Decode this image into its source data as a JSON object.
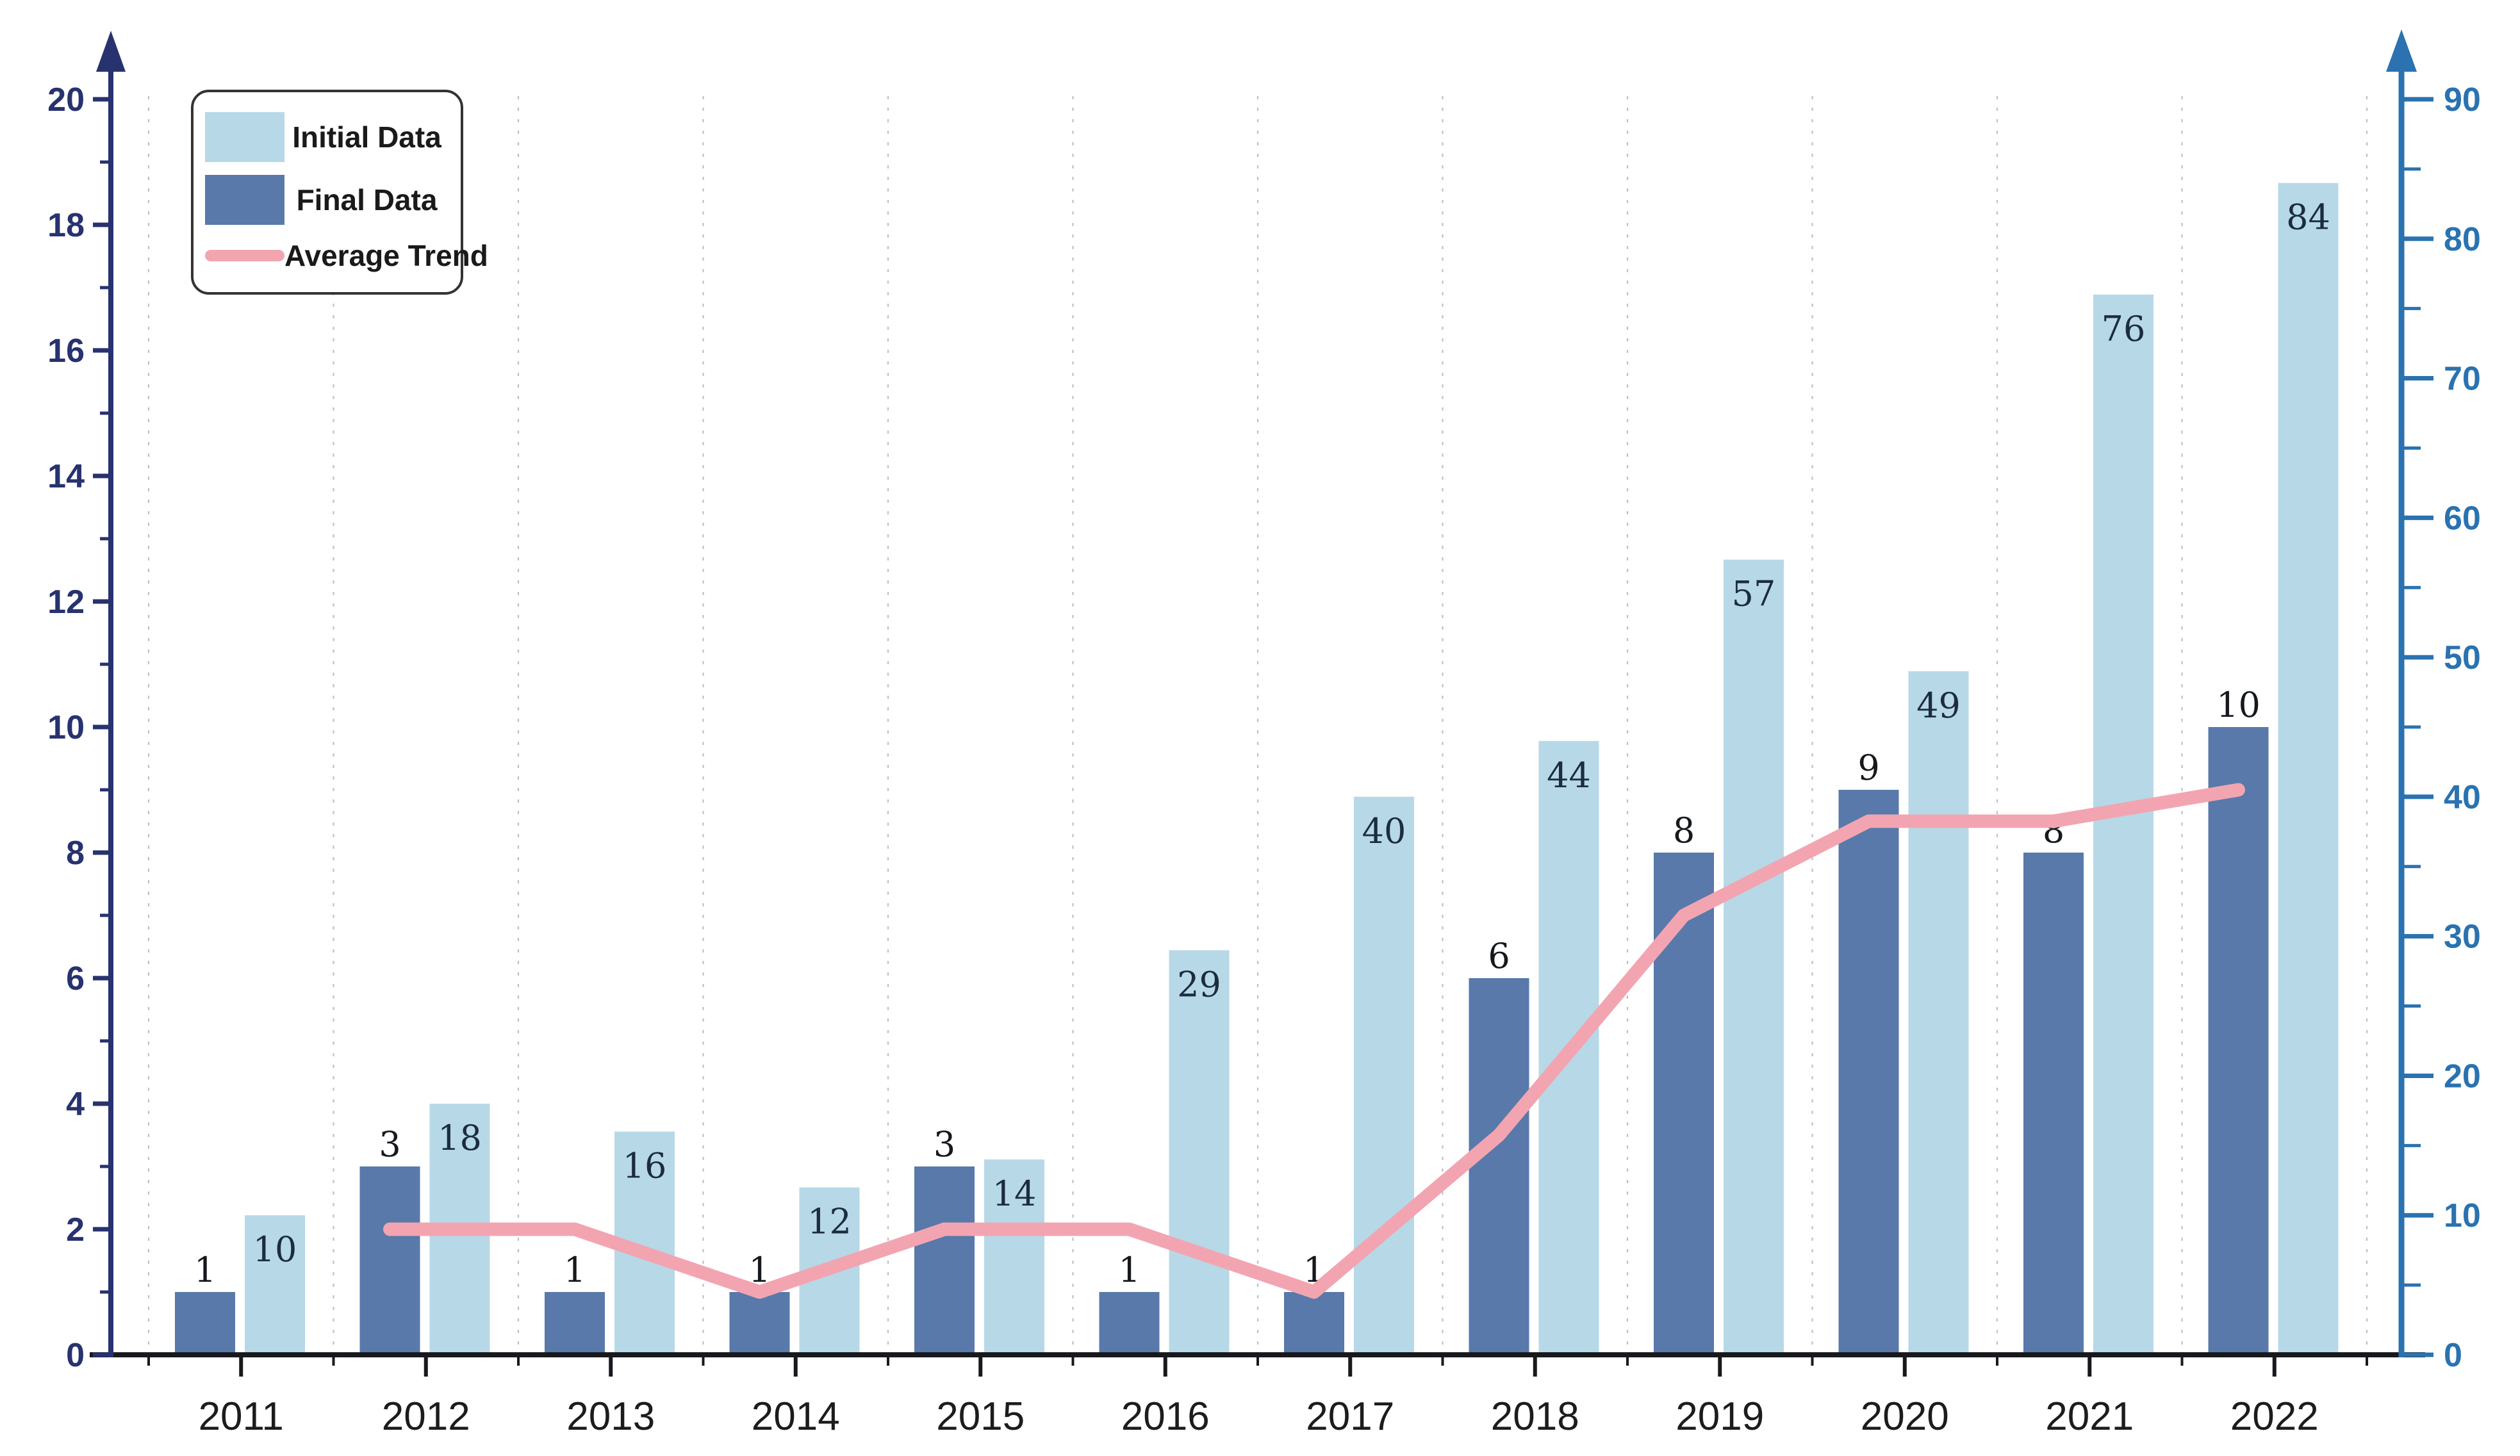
{
  "chart_data": {
    "type": "bar",
    "title": "",
    "categories": [
      "2011",
      "2012",
      "2013",
      "2014",
      "2015",
      "2016",
      "2017",
      "2018",
      "2019",
      "2020",
      "2021",
      "2022"
    ],
    "series": [
      {
        "name": "Initial Data",
        "axis": "right",
        "slot": 1,
        "color": "#b7d8e7",
        "label_color": "#1c2c3f",
        "label_position": "inside-top",
        "values": [
          10,
          18,
          16,
          12,
          14,
          29,
          40,
          44,
          57,
          49,
          76,
          84
        ]
      },
      {
        "name": "Final Data",
        "axis": "left",
        "slot": 0,
        "color": "#5879aa",
        "label_color": "#15181c",
        "label_position": "above",
        "values": [
          1,
          3,
          1,
          1,
          3,
          1,
          1,
          6,
          8,
          9,
          8,
          10
        ]
      }
    ],
    "line_series": {
      "name": "Average Trend",
      "axis": "left",
      "color": "#f2a5b1",
      "start_category_index": 1,
      "values": [
        2,
        2,
        1,
        2,
        2,
        1,
        3.5,
        7,
        8.5,
        8.5,
        9
      ]
    },
    "left_axis": {
      "min": 0,
      "max": 20,
      "major_step": 2,
      "minor_step": 1,
      "color": "#27326f",
      "tick_labels": [
        "0",
        "2",
        "4",
        "6",
        "8",
        "10",
        "12",
        "14",
        "16",
        "18",
        "20"
      ]
    },
    "right_axis": {
      "min": 0,
      "max": 90,
      "major_step": 10,
      "minor_step": 5,
      "color": "#2a72b0",
      "tick_labels": [
        "0",
        "10",
        "20",
        "30",
        "40",
        "50",
        "60",
        "70",
        "80",
        "90"
      ]
    },
    "x_axis": {
      "color": "#17191c",
      "label_color": "#1c1c1c"
    },
    "grid": {
      "vertical_dotted": true,
      "color": "#c0c0c8"
    },
    "legend": {
      "position": "top-left"
    },
    "background": "#ffffff"
  }
}
